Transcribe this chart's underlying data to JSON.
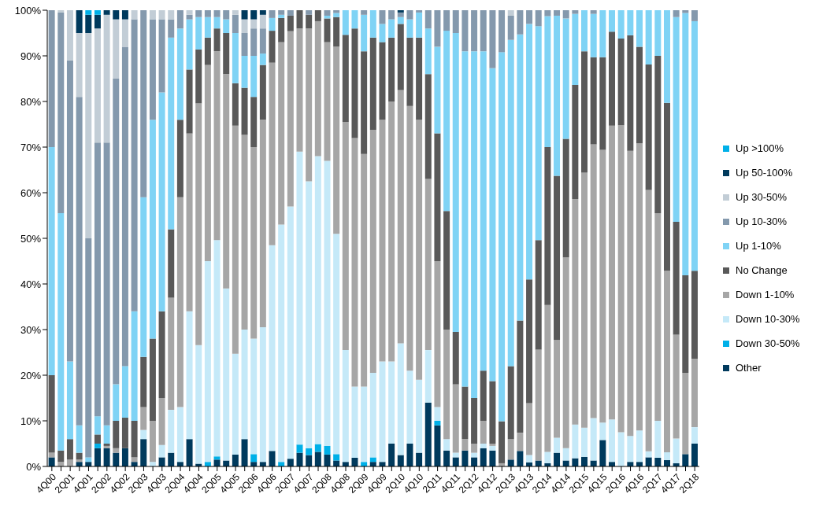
{
  "chart_data": {
    "type": "bar",
    "stacked": true,
    "legend": "right",
    "categories": [
      "4Q00",
      null,
      "2Q01",
      null,
      "4Q01",
      null,
      "2Q02",
      null,
      "4Q02",
      null,
      "2Q03",
      null,
      "4Q03",
      null,
      "2Q04",
      null,
      "4Q04",
      null,
      "2Q05",
      null,
      "4Q05",
      null,
      "2Q06",
      null,
      "4Q06",
      null,
      "2Q07",
      null,
      "4Q07",
      null,
      "2Q08",
      null,
      "4Q08",
      null,
      "2Q09",
      null,
      "4Q09",
      null,
      "2Q10",
      null,
      "4Q10",
      null,
      "2Q11",
      null,
      "4Q11",
      null,
      "2Q12",
      null,
      "4Q12",
      null,
      "2Q13",
      null,
      "4Q13",
      null,
      "2Q14",
      null,
      "4Q14",
      null,
      "2Q15",
      null,
      "4Q15",
      null,
      "2Q16",
      null,
      "4Q16",
      null,
      "2Q17",
      null,
      "4Q17",
      null,
      "2Q18"
    ],
    "ylim": [
      0,
      100
    ],
    "yticks": [
      {
        "value": 0,
        "label": "0%"
      },
      {
        "value": 10,
        "label": "10%"
      },
      {
        "value": 20,
        "label": "20%"
      },
      {
        "value": 30,
        "label": "30%"
      },
      {
        "value": 40,
        "label": "40%"
      },
      {
        "value": 50,
        "label": "50%"
      },
      {
        "value": 60,
        "label": "60%"
      },
      {
        "value": 70,
        "label": "70%"
      },
      {
        "value": 80,
        "label": "80%"
      },
      {
        "value": 90,
        "label": "90%"
      },
      {
        "value": 100,
        "label": "100%"
      }
    ],
    "series": [
      {
        "name": "Other",
        "color": "#003a5d",
        "values": [
          2,
          0,
          0,
          1,
          1,
          4,
          4,
          3,
          4,
          1,
          6,
          0,
          2,
          3,
          1,
          6,
          0.6,
          0,
          1.5,
          1.3,
          2.6,
          6,
          1,
          1,
          3.4,
          0,
          1.7,
          3,
          2.5,
          3.2,
          2.6,
          1.3,
          1,
          1.9,
          0,
          1,
          1,
          5,
          2.5,
          5,
          3,
          14,
          9,
          3.5,
          2,
          3.5,
          2,
          4,
          3.5,
          0,
          1.5,
          3.4,
          0.9,
          1.3,
          0.7,
          3,
          1.3,
          1.8,
          2.1,
          1.3,
          5.8,
          1,
          0,
          1,
          1,
          2,
          1.9,
          1.4,
          0.7,
          2.7,
          5
        ]
      },
      {
        "name": "Down 30-50%",
        "color": "#00b0e8",
        "values": [
          0,
          0,
          0,
          0,
          0,
          1,
          0,
          0,
          0,
          0,
          0,
          0,
          0,
          0,
          0,
          0,
          0,
          1,
          0.7,
          0,
          0,
          0,
          1.7,
          0,
          0,
          1,
          0,
          1.8,
          1.5,
          1.7,
          1.9,
          1.4,
          0,
          0,
          1,
          1,
          0,
          0,
          0,
          0,
          0,
          0,
          1,
          0,
          0,
          0,
          0,
          0,
          0,
          0,
          0,
          0,
          0,
          0,
          0,
          0,
          0,
          0,
          0,
          0,
          0,
          0,
          0,
          0,
          0,
          0,
          0,
          0,
          0,
          0,
          0
        ]
      },
      {
        "name": "Down 10-30%",
        "color": "#c5e9f8",
        "values": [
          0,
          0,
          0,
          0,
          0,
          0,
          0,
          0,
          0,
          0,
          2,
          1,
          2.7,
          9.4,
          12,
          28,
          26,
          44,
          47.4,
          37.7,
          22.1,
          24,
          25.3,
          29.5,
          45.1,
          52,
          55.3,
          64.2,
          58.5,
          63.1,
          62.5,
          48.3,
          24.5,
          15.6,
          16.5,
          18.5,
          22,
          18,
          24.5,
          16,
          16,
          11.5,
          3,
          2.5,
          1,
          0,
          1,
          1,
          1,
          0,
          0,
          0,
          1.6,
          0,
          2.5,
          3.3,
          2.7,
          7.4,
          6.4,
          9.3,
          3.8,
          9.3,
          7.5,
          5.7,
          6.9,
          1.3,
          8.1,
          1.7,
          5.4,
          0,
          3.6
        ]
      },
      {
        "name": "Down 1-10%",
        "color": "#a6a6a6",
        "values": [
          1,
          1,
          1.5,
          0.5,
          0,
          0,
          0.5,
          1,
          0,
          1,
          5,
          9,
          10.3,
          24.6,
          46,
          39,
          53,
          43,
          41.4,
          47,
          50,
          42.7,
          42,
          45.5,
          40,
          40,
          38.4,
          27,
          33.5,
          29.6,
          26,
          41,
          50,
          54.5,
          51,
          53.3,
          53,
          57,
          55.5,
          58,
          57,
          37.5,
          32,
          24,
          15,
          2.5,
          2,
          5,
          0.5,
          0.7,
          4.5,
          4,
          11.4,
          24.3,
          32.2,
          21.4,
          41.8,
          49.4,
          55.9,
          60,
          59.8,
          64.4,
          67.3,
          62.5,
          62.9,
          57.3,
          45.5,
          39.8,
          22.8,
          17.8,
          15
        ]
      },
      {
        "name": "No Change",
        "color": "#595959",
        "values": [
          17,
          2.5,
          4.5,
          1.5,
          0,
          2,
          0.5,
          6,
          6.7,
          8,
          11,
          18,
          19,
          15,
          17,
          14,
          11.8,
          6,
          5,
          9,
          9.3,
          10.3,
          11,
          12,
          7,
          5.3,
          3.4,
          4,
          3,
          2.4,
          5.2,
          6.5,
          19.1,
          24,
          22.5,
          20.2,
          17,
          14,
          14.5,
          15,
          18,
          23,
          28,
          26,
          11.5,
          11.5,
          10,
          11,
          13.7,
          9.2,
          16,
          24.6,
          27.1,
          24,
          34.6,
          36,
          26,
          25,
          26.6,
          19.1,
          20.3,
          20.6,
          19,
          25.3,
          21.2,
          27.5,
          34.5,
          36.8,
          24.7,
          21.4,
          19.3
        ]
      },
      {
        "name": "Up 1-10%",
        "color": "#7fd3f5",
        "values": [
          50,
          52,
          17,
          6,
          1,
          4,
          4,
          8,
          11.3,
          24,
          35,
          48,
          48,
          42,
          20,
          11,
          7.1,
          4.5,
          2.5,
          3,
          11,
          7,
          9,
          2.5,
          2.8,
          0.7,
          0,
          0,
          0,
          0,
          0.6,
          0.9,
          5.4,
          4,
          8,
          6,
          4,
          4,
          1.5,
          4,
          5.5,
          10,
          19,
          39.5,
          65.5,
          73.5,
          76,
          70,
          68.6,
          80.9,
          71.5,
          62.7,
          56,
          46.9,
          28.7,
          35.1,
          26.4,
          15.6,
          9,
          9.5,
          10.3,
          4.7,
          6.2,
          5.5,
          8,
          11.9,
          10,
          20.3,
          44.9,
          57.5,
          54.7
        ]
      },
      {
        "name": "Up 10-30%",
        "color": "#8499ad",
        "values": [
          30,
          44,
          66,
          72,
          48,
          60,
          62,
          67,
          70,
          64,
          41,
          22,
          16,
          4,
          4,
          1,
          1.5,
          1.5,
          1.5,
          2,
          4,
          5,
          6,
          5.5,
          1.7,
          1,
          1.2,
          0,
          1,
          0,
          1.2,
          0.6,
          0,
          0,
          1,
          0,
          3,
          2,
          1,
          2,
          0.5,
          4,
          8,
          4.5,
          5,
          9,
          9,
          9,
          12.7,
          9.2,
          5.3,
          5.3,
          3,
          3.5,
          1.3,
          1.2,
          1.8,
          0.8,
          0,
          0.8,
          0,
          0,
          0,
          0,
          0,
          0,
          0,
          0,
          1.5,
          0.6,
          2.4
        ]
      },
      {
        "name": "Up 30-50%",
        "color": "#c2cdd6",
        "values": [
          0,
          0.5,
          11,
          14,
          45,
          25,
          28,
          13,
          6,
          2,
          0,
          2,
          2,
          2,
          0,
          1,
          0,
          0,
          0,
          0,
          1,
          3,
          2,
          3,
          0,
          0,
          0,
          0,
          0,
          0,
          0,
          0,
          0,
          0,
          0,
          0,
          0,
          0,
          0,
          0,
          0,
          0,
          0,
          0,
          0,
          0,
          0,
          0,
          0,
          0,
          1.2,
          0,
          0,
          0,
          0,
          0,
          0,
          0,
          0,
          0,
          0,
          0,
          0,
          0,
          0,
          0,
          0,
          0,
          0,
          0,
          0
        ]
      },
      {
        "name": "Up 50-100%",
        "color": "#003a5d",
        "values": [
          0,
          0,
          0,
          5,
          4,
          3,
          1,
          2,
          2,
          0,
          0,
          0,
          0,
          0,
          0,
          0,
          0,
          0,
          0,
          0,
          0,
          2,
          2,
          1,
          0,
          0,
          0,
          0,
          0,
          0,
          0,
          0,
          0,
          0,
          0,
          0,
          0,
          0,
          0.5,
          0,
          0,
          0,
          0,
          0,
          0,
          0,
          0,
          0,
          0,
          0,
          0,
          0,
          0,
          0,
          0,
          0,
          0,
          0,
          0,
          0,
          0,
          0,
          0,
          0,
          0,
          0,
          0,
          0,
          0,
          0,
          0
        ]
      },
      {
        "name": "Up >100%",
        "color": "#00b0e8",
        "values": [
          0,
          0,
          0,
          0,
          1,
          1,
          0,
          0,
          0,
          0,
          0,
          0,
          0,
          0,
          0,
          0,
          0,
          0,
          0,
          0,
          0,
          0,
          0,
          0,
          0,
          0,
          0,
          0,
          0,
          0,
          0,
          0,
          0,
          0,
          0,
          0,
          0,
          0,
          0,
          0,
          0,
          0,
          0,
          0,
          0,
          0,
          0,
          0,
          0,
          0,
          0,
          0,
          0,
          0,
          0,
          0,
          0,
          0,
          0,
          0,
          0,
          0,
          0,
          0,
          0,
          0,
          0,
          0,
          0,
          0,
          0
        ]
      }
    ]
  }
}
